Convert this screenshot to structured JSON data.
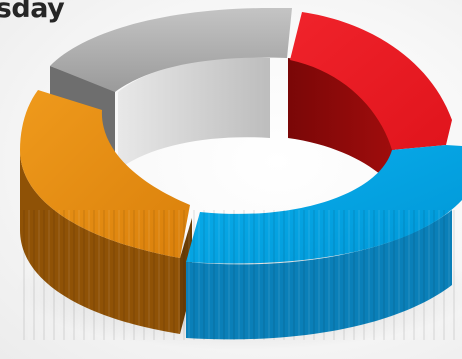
{
  "title": "esday",
  "chart_data": {
    "type": "pie",
    "style": "3d-donut",
    "title": "esday",
    "segments": [
      {
        "color": "#ed1c24",
        "value": 18
      },
      {
        "color": "#00a4e4",
        "value": 32
      },
      {
        "color": "#e48a12",
        "value": 22
      },
      {
        "color": "#9e9e9e",
        "value": 28
      }
    ],
    "colors": {
      "red_top": "#ed1c24",
      "red_side": "#8f0a0a",
      "blue_top": "#00a4e4",
      "blue_side": "#0a7fb8",
      "orange_top": "#e48a12",
      "orange_side": "#8f5206",
      "gray_top": "#9e9e9e",
      "gray_side": "#7a7a7a"
    }
  }
}
